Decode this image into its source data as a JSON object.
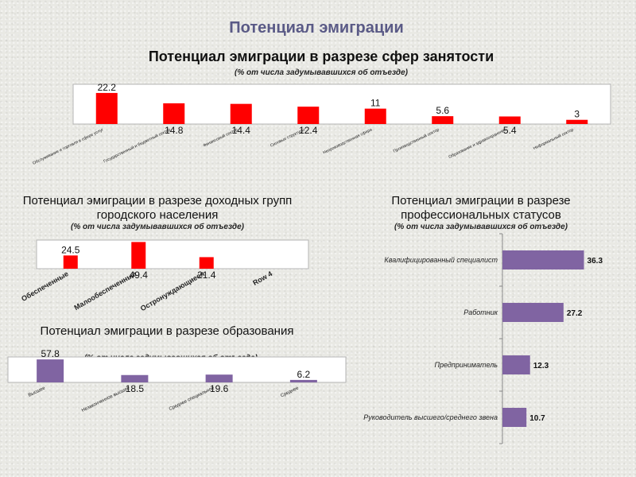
{
  "page_title": "Потенциал эмиграции",
  "colors": {
    "red_bar": "#ff0000",
    "purple_bar": "#8064a2",
    "title": "#5a5a86"
  },
  "chart_data": [
    {
      "id": "sphere",
      "type": "bar",
      "title": "Потенциал эмиграции в разрезе сфер занятости",
      "subtitle": "(% от числа задумывавшихся об отъезде)",
      "categories": [
        "Обслуживание и торговля в сфере услуг",
        "Государственный и бюджетный сектор",
        "Финансовый сектор",
        "Силовые структуры",
        "Непроизводственная сфера",
        "Производственный сектор",
        "Образование и здравоохранение",
        "Неформальный сектор"
      ],
      "values": [
        22.2,
        14.8,
        14.4,
        12.4,
        11,
        5.6,
        5.4,
        3
      ],
      "label_position": [
        "above",
        "below",
        "below",
        "below",
        "above",
        "above",
        "below",
        "above"
      ],
      "ylim": [
        0,
        25
      ]
    },
    {
      "id": "income",
      "type": "bar",
      "title": "Потенциал эмиграции в разрезе доходных групп городского населения",
      "subtitle": "(% от числа задумывавшихся об отъезде)",
      "categories": [
        "Обеспеченные",
        "Малообеспеченные",
        "Остронуждающиеся",
        "Row 4"
      ],
      "values": [
        24.5,
        49.4,
        21.4,
        null
      ],
      "label_position": [
        "above",
        "below",
        "below",
        "none"
      ],
      "ylim": [
        0,
        50
      ]
    },
    {
      "id": "education",
      "type": "bar",
      "title": "Потенциал эмиграции в разрезе образования",
      "subtitle": "(% от числа задумывавшихся об отъезде)",
      "categories": [
        "Высшее",
        "Незаконченное высшее",
        "Среднее специальное",
        "Среднее"
      ],
      "values": [
        57.8,
        18.5,
        19.6,
        6.2
      ],
      "label_position": [
        "above",
        "below",
        "below",
        "above"
      ],
      "ylim": [
        0,
        60
      ]
    },
    {
      "id": "status",
      "type": "bar",
      "orientation": "horizontal",
      "title": "Потенциал эмиграции в разрезе профессиональных статусов",
      "subtitle": "(% от числа задумывавшихся об отъезде)",
      "categories": [
        "Квалифицированный специалист",
        "Работник",
        "Предприниматель",
        "Руководитель высшего/среднего звена"
      ],
      "values": [
        36.3,
        27.2,
        12.3,
        10.7
      ],
      "xlim": [
        0,
        40
      ]
    }
  ]
}
